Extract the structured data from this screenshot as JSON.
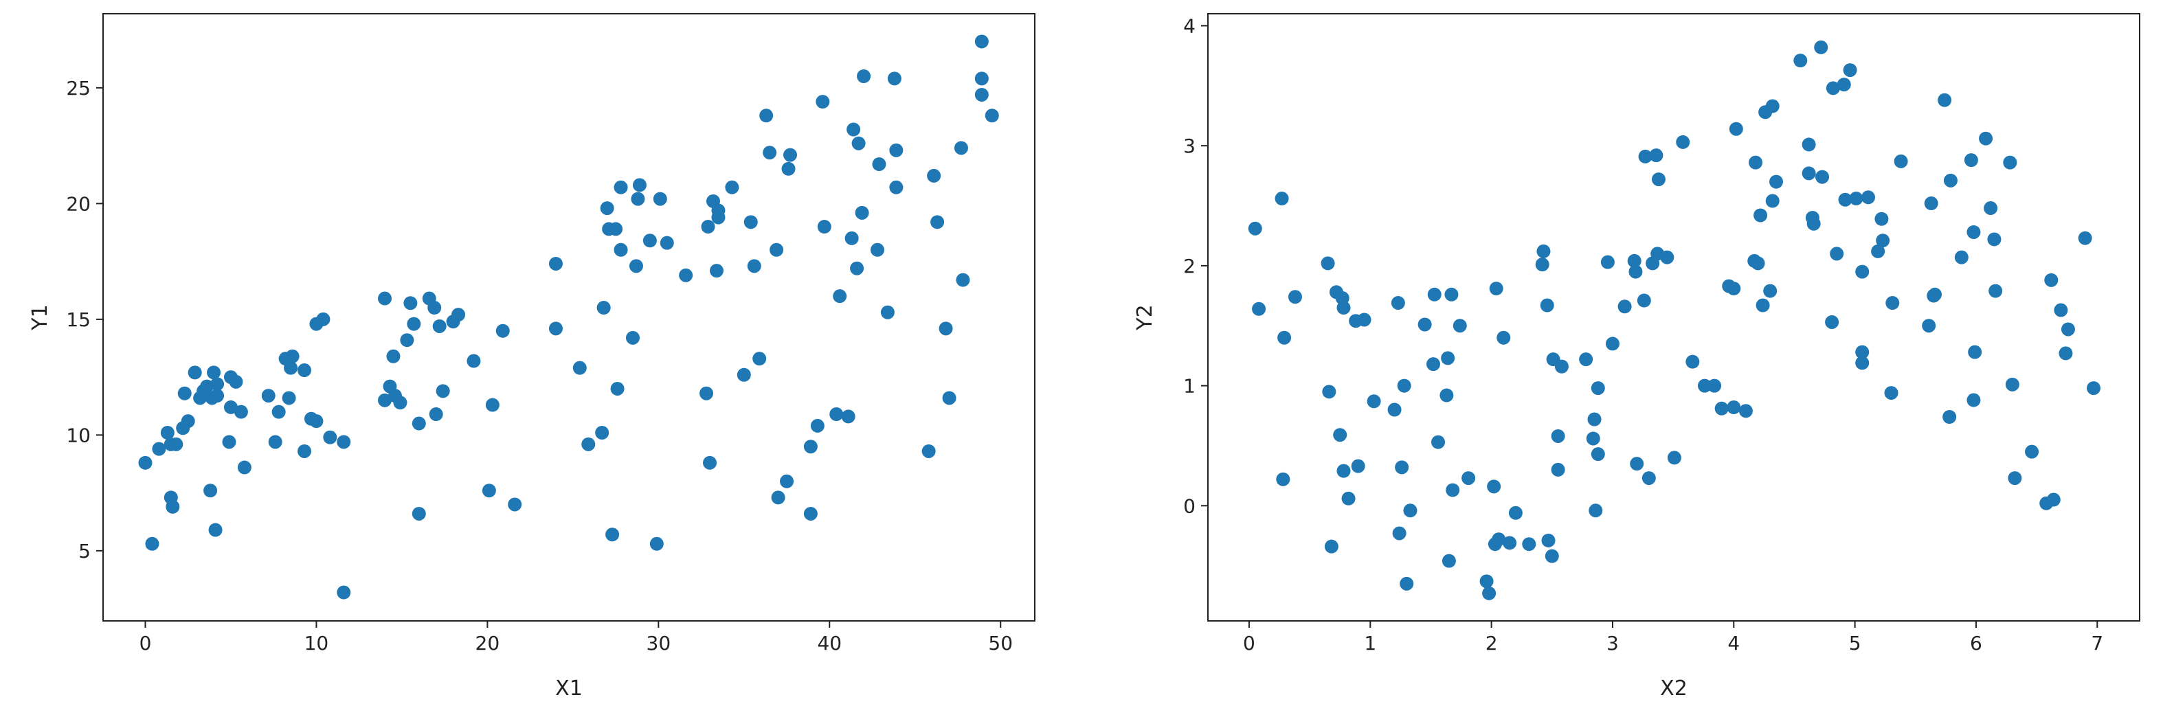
{
  "chart_data": [
    {
      "type": "scatter",
      "xlabel": "X1",
      "ylabel": "Y1",
      "color": "#1f77b4",
      "xlim": [
        -2.47,
        52.0
      ],
      "ylim": [
        1.97,
        28.2
      ],
      "xticks": [
        0,
        10,
        20,
        30,
        40,
        50
      ],
      "yticks": [
        5,
        10,
        15,
        20,
        25
      ],
      "series": [
        {
          "x": [
            0,
            0.4,
            0.8,
            1.3,
            1.5,
            1.5,
            1.6,
            1.8,
            2.2,
            2.3,
            2.5,
            2.9,
            3.2,
            3.4,
            3.6,
            3.8,
            3.9,
            4.0,
            4.1,
            4.2,
            4.2,
            4.9,
            5.0,
            5.0,
            5.3,
            5.6,
            5.8,
            7.2,
            7.6,
            7.8,
            8.2,
            8.4,
            8.5,
            8.6,
            9.3,
            9.3,
            9.7,
            10.0,
            10.0,
            10.4,
            10.8,
            11.6,
            11.6,
            14.0,
            14.0,
            14.3,
            14.5,
            14.6,
            14.9,
            15.3,
            15.5,
            15.7,
            16.0,
            16.0,
            16.6,
            16.9,
            17.0,
            17.2,
            17.4,
            18.0,
            18.3,
            19.2,
            20.1,
            20.3,
            20.9,
            21.6,
            24.0,
            24.0,
            25.4,
            25.9,
            26.7,
            26.8,
            27.0,
            27.1,
            27.3,
            27.5,
            27.6,
            27.8,
            27.8,
            28.5,
            28.7,
            28.8,
            28.9,
            29.5,
            29.9,
            30.1,
            30.5,
            31.6,
            32.8,
            32.9,
            33.0,
            33.2,
            33.4,
            33.5,
            33.5,
            34.3,
            35.0,
            35.4,
            35.6,
            35.9,
            36.3,
            36.5,
            36.9,
            37.0,
            37.5,
            37.6,
            37.7,
            38.9,
            38.9,
            39.3,
            39.6,
            39.7,
            40.4,
            40.6,
            41.1,
            41.3,
            41.4,
            41.6,
            41.7,
            41.9,
            42.0,
            42.8,
            42.9,
            43.4,
            43.8,
            43.9,
            43.9,
            45.8,
            46.1,
            46.3,
            46.8,
            47.0,
            47.7,
            47.8,
            48.9,
            48.9,
            48.9,
            49.5
          ],
          "values": [
            8.8,
            5.3,
            9.4,
            10.1,
            9.6,
            7.3,
            6.9,
            9.6,
            10.3,
            11.8,
            10.6,
            12.7,
            11.6,
            11.9,
            12.1,
            7.6,
            11.6,
            12.7,
            5.9,
            12.2,
            11.7,
            9.7,
            11.2,
            12.5,
            12.3,
            11.0,
            8.6,
            11.7,
            9.7,
            11.0,
            13.3,
            11.6,
            12.9,
            13.4,
            12.8,
            9.3,
            10.7,
            10.6,
            14.8,
            15.0,
            9.9,
            9.7,
            3.2,
            15.9,
            11.5,
            12.1,
            13.4,
            11.7,
            11.4,
            14.1,
            15.7,
            14.8,
            10.5,
            6.6,
            15.9,
            15.5,
            10.9,
            14.7,
            11.9,
            14.9,
            15.2,
            13.2,
            7.6,
            11.3,
            14.5,
            7.0,
            17.4,
            14.6,
            12.9,
            9.6,
            10.1,
            15.5,
            19.8,
            18.9,
            5.7,
            18.9,
            12.0,
            18.0,
            20.7,
            14.2,
            17.3,
            20.2,
            20.8,
            18.4,
            5.3,
            20.2,
            18.3,
            16.9,
            11.8,
            19.0,
            8.8,
            20.1,
            17.1,
            19.7,
            19.4,
            20.7,
            12.6,
            19.2,
            17.3,
            13.3,
            23.8,
            22.2,
            18.0,
            7.3,
            8.0,
            21.5,
            22.1,
            6.6,
            9.5,
            10.4,
            24.4,
            19.0,
            10.9,
            16.0,
            10.8,
            18.5,
            23.2,
            17.2,
            22.6,
            19.6,
            25.5,
            18.0,
            21.7,
            15.3,
            25.4,
            22.3,
            20.7,
            9.3,
            21.2,
            19.2,
            14.6,
            11.6,
            22.4,
            16.7,
            27.0,
            25.4,
            24.7,
            23.8
          ]
        }
      ]
    },
    {
      "type": "scatter",
      "xlabel": "X2",
      "ylabel": "Y2",
      "color": "#1f77b4",
      "xlim": [
        -0.34,
        7.35
      ],
      "ylim": [
        -0.96,
        4.1
      ],
      "xticks": [
        0,
        1,
        2,
        3,
        4,
        5,
        6,
        7
      ],
      "yticks": [
        0,
        1,
        2,
        3,
        4
      ],
      "series": [
        {
          "x": [
            0.05,
            0.08,
            0.27,
            0.28,
            0.29,
            0.38,
            0.65,
            0.66,
            0.68,
            0.72,
            0.75,
            0.77,
            0.78,
            0.78,
            0.82,
            0.88,
            0.9,
            0.95,
            1.03,
            1.2,
            1.23,
            1.24,
            1.26,
            1.28,
            1.3,
            1.33,
            1.45,
            1.52,
            1.53,
            1.56,
            1.63,
            1.64,
            1.65,
            1.67,
            1.68,
            1.74,
            1.81,
            1.96,
            1.98,
            2.02,
            2.04,
            2.03,
            2.06,
            2.1,
            2.15,
            2.2,
            2.31,
            2.43,
            2.42,
            2.46,
            2.47,
            2.5,
            2.51,
            2.55,
            2.55,
            2.58,
            2.78,
            2.84,
            2.85,
            2.86,
            2.88,
            2.88,
            2.96,
            3.0,
            3.1,
            3.18,
            3.19,
            3.2,
            3.26,
            3.27,
            3.3,
            3.33,
            3.36,
            3.37,
            3.38,
            3.45,
            3.51,
            3.58,
            3.66,
            3.76,
            3.84,
            3.9,
            3.96,
            4.0,
            4.0,
            4.02,
            4.1,
            4.17,
            4.18,
            4.2,
            4.22,
            4.24,
            4.26,
            4.3,
            4.32,
            4.32,
            4.35,
            4.55,
            4.62,
            4.62,
            4.65,
            4.66,
            4.72,
            4.73,
            4.81,
            4.82,
            4.85,
            4.91,
            4.92,
            4.96,
            5.01,
            5.06,
            5.06,
            5.06,
            5.11,
            5.19,
            5.22,
            5.23,
            5.3,
            5.31,
            5.38,
            5.61,
            5.63,
            5.65,
            5.66,
            5.74,
            5.78,
            5.79,
            5.88,
            5.96,
            5.98,
            5.99,
            5.98,
            6.08,
            6.12,
            6.15,
            6.16,
            6.28,
            6.3,
            6.32,
            6.46,
            6.58,
            6.62,
            6.64,
            6.7,
            6.74,
            6.76,
            6.9,
            6.97
          ],
          "values": [
            2.31,
            1.64,
            2.56,
            0.22,
            1.4,
            1.74,
            2.02,
            0.95,
            -0.34,
            1.78,
            0.59,
            1.73,
            0.29,
            1.65,
            0.06,
            1.54,
            0.33,
            1.55,
            0.87,
            0.8,
            1.69,
            -0.23,
            0.32,
            1.0,
            -0.65,
            -0.04,
            1.51,
            1.18,
            1.76,
            0.53,
            0.92,
            1.23,
            -0.46,
            1.76,
            0.13,
            1.5,
            0.23,
            -0.63,
            -0.73,
            0.16,
            1.81,
            -0.32,
            -0.28,
            1.4,
            -0.31,
            -0.06,
            -0.32,
            2.12,
            2.01,
            1.67,
            -0.29,
            -0.42,
            1.22,
            0.3,
            0.58,
            1.16,
            1.22,
            0.56,
            0.72,
            -0.04,
            0.43,
            0.98,
            2.03,
            1.35,
            1.66,
            2.04,
            1.95,
            0.35,
            1.71,
            2.91,
            0.23,
            2.02,
            2.92,
            2.1,
            2.72,
            2.07,
            0.4,
            3.03,
            1.2,
            1.0,
            1.0,
            0.81,
            1.83,
            1.81,
            0.82,
            3.14,
            0.79,
            2.04,
            2.86,
            2.02,
            2.42,
            1.67,
            3.28,
            1.79,
            3.33,
            2.54,
            2.7,
            3.71,
            3.01,
            2.77,
            2.4,
            2.35,
            3.82,
            2.74,
            1.53,
            3.48,
            2.1,
            3.51,
            2.55,
            3.63,
            2.56,
            1.95,
            1.28,
            1.19,
            2.57,
            2.12,
            2.39,
            2.21,
            0.94,
            1.69,
            2.87,
            1.5,
            2.52,
            1.75,
            1.76,
            3.38,
            0.74,
            2.71,
            2.07,
            2.88,
            2.28,
            1.28,
            0.88,
            3.06,
            2.48,
            2.22,
            1.79,
            2.86,
            1.01,
            0.23,
            0.45,
            0.02,
            1.88,
            0.05,
            1.63,
            1.27,
            1.47,
            2.23,
            0.98
          ]
        }
      ]
    }
  ]
}
